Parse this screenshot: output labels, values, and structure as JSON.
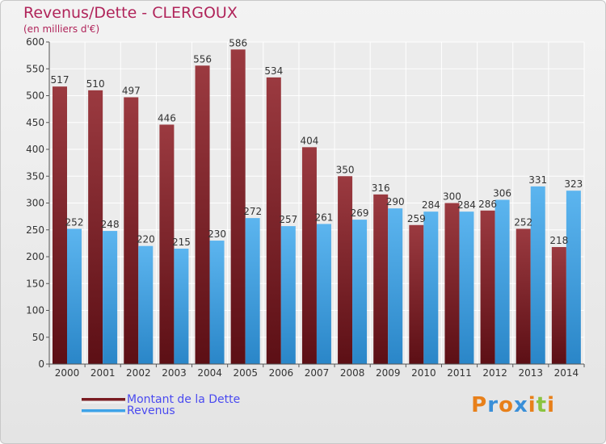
{
  "chart_data": {
    "type": "bar",
    "title": "Revenus/Dette - CLERGOUX",
    "subtitle": "(en milliers d'€)",
    "categories": [
      "2000",
      "2001",
      "2002",
      "2003",
      "2004",
      "2005",
      "2006",
      "2007",
      "2008",
      "2009",
      "2010",
      "2011",
      "2012",
      "2013",
      "2014"
    ],
    "series": [
      {
        "name": "Montant de la Dette",
        "color": "#7a1c22",
        "values": [
          517,
          510,
          497,
          446,
          556,
          586,
          534,
          404,
          350,
          316,
          259,
          300,
          286,
          252,
          218
        ]
      },
      {
        "name": "Revenus",
        "color": "#3ea3e8",
        "values": [
          252,
          248,
          220,
          215,
          230,
          272,
          257,
          261,
          269,
          290,
          284,
          284,
          306,
          331,
          323
        ]
      }
    ],
    "ylim": [
      0,
      600
    ],
    "yticks": [
      0,
      50,
      100,
      150,
      200,
      250,
      300,
      350,
      400,
      450,
      500,
      550,
      600
    ],
    "grid": true,
    "legend_position": "bottom-left"
  },
  "logo": {
    "text": "Proxiti",
    "letters": [
      {
        "ch": "P",
        "color": "#e8801a"
      },
      {
        "ch": "r",
        "color": "#3a8fd8"
      },
      {
        "ch": "o",
        "color": "#e8801a"
      },
      {
        "ch": "x",
        "color": "#3a8fd8"
      },
      {
        "ch": "i",
        "color": "#e8801a"
      },
      {
        "ch": "t",
        "color": "#8ac43f"
      },
      {
        "ch": "i",
        "color": "#e8801a"
      }
    ]
  }
}
